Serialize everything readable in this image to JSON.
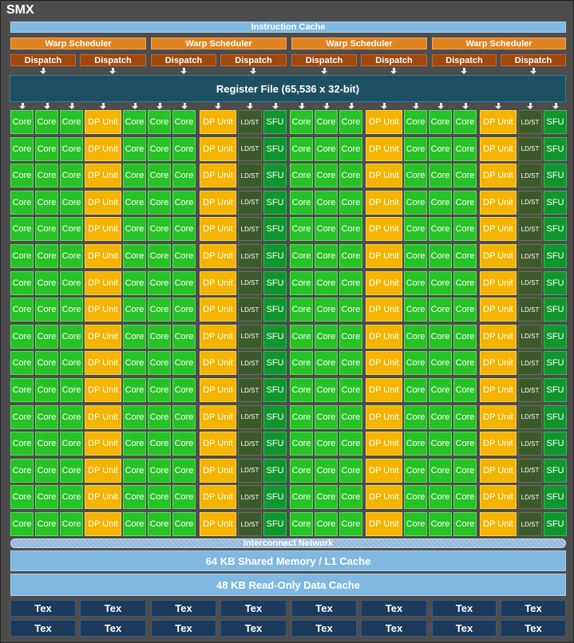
{
  "title": "SMX",
  "instruction_cache": "Instruction Cache",
  "warp_scheduler_label": "Warp Scheduler",
  "dispatch_label": "Dispatch",
  "register_file": "Register File (65,536 x 32-bit)",
  "unit_labels": {
    "core": "Core",
    "dp": "DP Unit",
    "ldst": "LD/ST",
    "sfu": "SFU"
  },
  "row_pattern": [
    "core",
    "core",
    "core",
    "dp",
    "core",
    "core",
    "core",
    "dp",
    "ldst",
    "sfu",
    "core",
    "core",
    "core",
    "dp",
    "core",
    "core",
    "core",
    "dp",
    "ldst",
    "sfu"
  ],
  "row_count": 16,
  "interconnect": "Interconnect Network",
  "shared_memory": "64 KB Shared Memory / L1 Cache",
  "readonly_cache": "48 KB Read-Only Data Cache",
  "tex_label": "Tex",
  "tex_rows": 2,
  "tex_per_row": 8,
  "colors": {
    "background": "#4d4d4d",
    "core": "#26c226",
    "dp_unit": "#f4b400",
    "ldst": "#3c5a29",
    "sfu": "#10962e",
    "warp_scheduler": "#e0821e",
    "dispatch": "#a0470c",
    "register_file": "#1e5063",
    "cache": "#80b8e0",
    "tex": "#1c3a5c"
  }
}
